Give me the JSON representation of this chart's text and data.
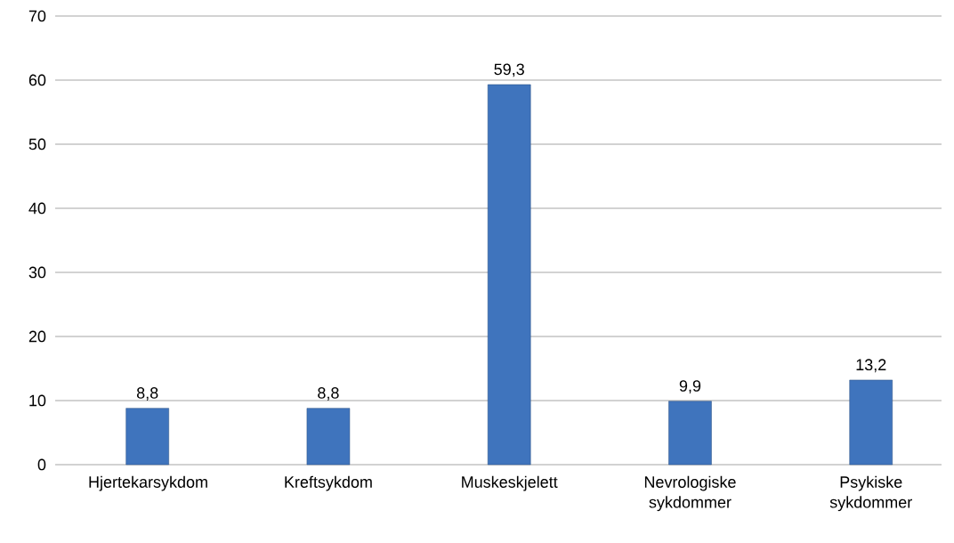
{
  "chart_data": {
    "type": "bar",
    "categories": [
      "Hjertekarsykdom",
      "Kreftsykdom",
      "Muskeskjelett",
      "Nevrologiske sykdommer",
      "Psykiske sykdommer"
    ],
    "values": [
      8.8,
      8.8,
      59.3,
      9.9,
      13.2
    ],
    "value_labels": [
      "8,8",
      "8,8",
      "59,3",
      "9,9",
      "13,2"
    ],
    "color": "#3f74bd",
    "ylim": [
      0,
      70
    ],
    "yticks": [
      0,
      10,
      20,
      30,
      40,
      50,
      60,
      70
    ],
    "grid": "y"
  }
}
